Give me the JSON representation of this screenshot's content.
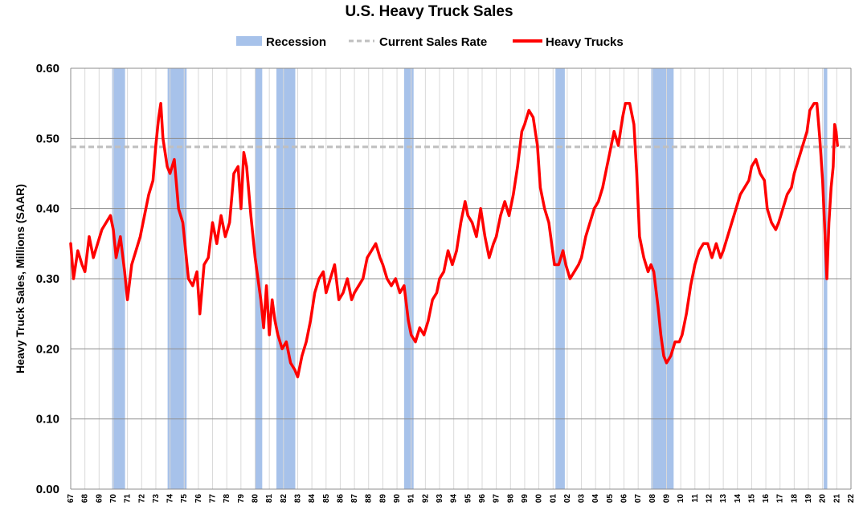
{
  "chart_data": {
    "type": "line",
    "title": "U.S. Heavy Truck Sales",
    "ylabel": "Heavy Truck Sales, Millions (SAAR)",
    "xlabel": "",
    "ylim": [
      0,
      0.6
    ],
    "xlim": [
      1967,
      2022
    ],
    "yticks": [
      "0.00",
      "0.10",
      "0.20",
      "0.30",
      "0.40",
      "0.50",
      "0.60"
    ],
    "xtick_labels": [
      "67",
      "68",
      "69",
      "70",
      "71",
      "72",
      "73",
      "74",
      "75",
      "76",
      "77",
      "78",
      "79",
      "80",
      "81",
      "82",
      "83",
      "84",
      "85",
      "86",
      "87",
      "88",
      "89",
      "90",
      "91",
      "92",
      "93",
      "94",
      "95",
      "96",
      "97",
      "98",
      "99",
      "00",
      "01",
      "02",
      "03",
      "04",
      "05",
      "06",
      "07",
      "08",
      "09",
      "10",
      "11",
      "12",
      "13",
      "14",
      "15",
      "16",
      "17",
      "18",
      "19",
      "20",
      "21",
      "22"
    ],
    "grid": true,
    "legend_placement": "top-center",
    "legend": [
      {
        "label": "Recession",
        "kind": "box",
        "color": "#a7c2ea"
      },
      {
        "label": "Current Sales Rate",
        "kind": "dash",
        "color": "#bfbfbf"
      },
      {
        "label": "Heavy Trucks",
        "kind": "line",
        "color": "#ff0000"
      }
    ],
    "current_sales_rate": 0.488,
    "recessions": [
      [
        1969.92,
        1970.83
      ],
      [
        1973.83,
        1975.17
      ],
      [
        1980.0,
        1980.5
      ],
      [
        1981.5,
        1982.83
      ],
      [
        1990.5,
        1991.17
      ],
      [
        2001.17,
        2001.83
      ],
      [
        2007.92,
        2009.5
      ],
      [
        2020.08,
        2020.33
      ]
    ],
    "series": [
      {
        "name": "Heavy Trucks",
        "color": "#ff0000",
        "points": [
          [
            1967.0,
            0.35
          ],
          [
            1967.2,
            0.3
          ],
          [
            1967.5,
            0.34
          ],
          [
            1967.8,
            0.32
          ],
          [
            1968.0,
            0.31
          ],
          [
            1968.3,
            0.36
          ],
          [
            1968.6,
            0.33
          ],
          [
            1968.9,
            0.35
          ],
          [
            1969.2,
            0.37
          ],
          [
            1969.5,
            0.38
          ],
          [
            1969.8,
            0.39
          ],
          [
            1970.0,
            0.37
          ],
          [
            1970.2,
            0.33
          ],
          [
            1970.5,
            0.36
          ],
          [
            1970.8,
            0.31
          ],
          [
            1971.0,
            0.27
          ],
          [
            1971.3,
            0.32
          ],
          [
            1971.6,
            0.34
          ],
          [
            1971.9,
            0.36
          ],
          [
            1972.2,
            0.39
          ],
          [
            1972.5,
            0.42
          ],
          [
            1972.8,
            0.44
          ],
          [
            1973.0,
            0.49
          ],
          [
            1973.2,
            0.53
          ],
          [
            1973.35,
            0.55
          ],
          [
            1973.5,
            0.5
          ],
          [
            1973.8,
            0.46
          ],
          [
            1974.0,
            0.45
          ],
          [
            1974.3,
            0.47
          ],
          [
            1974.6,
            0.4
          ],
          [
            1974.9,
            0.38
          ],
          [
            1975.1,
            0.34
          ],
          [
            1975.3,
            0.3
          ],
          [
            1975.6,
            0.29
          ],
          [
            1975.9,
            0.31
          ],
          [
            1976.1,
            0.25
          ],
          [
            1976.4,
            0.32
          ],
          [
            1976.7,
            0.33
          ],
          [
            1977.0,
            0.38
          ],
          [
            1977.3,
            0.35
          ],
          [
            1977.6,
            0.39
          ],
          [
            1977.9,
            0.36
          ],
          [
            1978.2,
            0.38
          ],
          [
            1978.5,
            0.45
          ],
          [
            1978.8,
            0.46
          ],
          [
            1979.0,
            0.4
          ],
          [
            1979.2,
            0.48
          ],
          [
            1979.4,
            0.46
          ],
          [
            1979.7,
            0.39
          ],
          [
            1980.0,
            0.33
          ],
          [
            1980.2,
            0.3
          ],
          [
            1980.4,
            0.27
          ],
          [
            1980.6,
            0.23
          ],
          [
            1980.8,
            0.29
          ],
          [
            1981.0,
            0.22
          ],
          [
            1981.2,
            0.27
          ],
          [
            1981.4,
            0.24
          ],
          [
            1981.6,
            0.22
          ],
          [
            1981.9,
            0.2
          ],
          [
            1982.2,
            0.21
          ],
          [
            1982.5,
            0.18
          ],
          [
            1982.8,
            0.17
          ],
          [
            1983.0,
            0.16
          ],
          [
            1983.3,
            0.19
          ],
          [
            1983.6,
            0.21
          ],
          [
            1983.9,
            0.24
          ],
          [
            1984.2,
            0.28
          ],
          [
            1984.5,
            0.3
          ],
          [
            1984.8,
            0.31
          ],
          [
            1985.0,
            0.28
          ],
          [
            1985.3,
            0.3
          ],
          [
            1985.6,
            0.32
          ],
          [
            1985.9,
            0.27
          ],
          [
            1986.2,
            0.28
          ],
          [
            1986.5,
            0.3
          ],
          [
            1986.8,
            0.27
          ],
          [
            1987.0,
            0.28
          ],
          [
            1987.3,
            0.29
          ],
          [
            1987.6,
            0.3
          ],
          [
            1987.9,
            0.33
          ],
          [
            1988.2,
            0.34
          ],
          [
            1988.5,
            0.35
          ],
          [
            1988.8,
            0.33
          ],
          [
            1989.0,
            0.32
          ],
          [
            1989.3,
            0.3
          ],
          [
            1989.6,
            0.29
          ],
          [
            1989.9,
            0.3
          ],
          [
            1990.2,
            0.28
          ],
          [
            1990.5,
            0.29
          ],
          [
            1990.8,
            0.24
          ],
          [
            1991.0,
            0.22
          ],
          [
            1991.3,
            0.21
          ],
          [
            1991.6,
            0.23
          ],
          [
            1991.9,
            0.22
          ],
          [
            1992.2,
            0.24
          ],
          [
            1992.5,
            0.27
          ],
          [
            1992.8,
            0.28
          ],
          [
            1993.0,
            0.3
          ],
          [
            1993.3,
            0.31
          ],
          [
            1993.6,
            0.34
          ],
          [
            1993.9,
            0.32
          ],
          [
            1994.2,
            0.34
          ],
          [
            1994.5,
            0.38
          ],
          [
            1994.8,
            0.41
          ],
          [
            1995.0,
            0.39
          ],
          [
            1995.3,
            0.38
          ],
          [
            1995.6,
            0.36
          ],
          [
            1995.9,
            0.4
          ],
          [
            1996.2,
            0.36
          ],
          [
            1996.5,
            0.33
          ],
          [
            1996.8,
            0.35
          ],
          [
            1997.0,
            0.36
          ],
          [
            1997.3,
            0.39
          ],
          [
            1997.6,
            0.41
          ],
          [
            1997.9,
            0.39
          ],
          [
            1998.2,
            0.42
          ],
          [
            1998.5,
            0.46
          ],
          [
            1998.8,
            0.51
          ],
          [
            1999.0,
            0.52
          ],
          [
            1999.3,
            0.54
          ],
          [
            1999.6,
            0.53
          ],
          [
            1999.9,
            0.49
          ],
          [
            2000.1,
            0.43
          ],
          [
            2000.4,
            0.4
          ],
          [
            2000.7,
            0.38
          ],
          [
            2000.9,
            0.35
          ],
          [
            2001.1,
            0.32
          ],
          [
            2001.4,
            0.32
          ],
          [
            2001.7,
            0.34
          ],
          [
            2001.9,
            0.32
          ],
          [
            2002.2,
            0.3
          ],
          [
            2002.5,
            0.31
          ],
          [
            2002.8,
            0.32
          ],
          [
            2003.0,
            0.33
          ],
          [
            2003.3,
            0.36
          ],
          [
            2003.6,
            0.38
          ],
          [
            2003.9,
            0.4
          ],
          [
            2004.2,
            0.41
          ],
          [
            2004.5,
            0.43
          ],
          [
            2004.8,
            0.46
          ],
          [
            2005.0,
            0.48
          ],
          [
            2005.3,
            0.51
          ],
          [
            2005.6,
            0.49
          ],
          [
            2005.9,
            0.53
          ],
          [
            2006.1,
            0.55
          ],
          [
            2006.4,
            0.55
          ],
          [
            2006.7,
            0.52
          ],
          [
            2006.9,
            0.45
          ],
          [
            2007.1,
            0.36
          ],
          [
            2007.4,
            0.33
          ],
          [
            2007.7,
            0.31
          ],
          [
            2007.9,
            0.32
          ],
          [
            2008.1,
            0.31
          ],
          [
            2008.4,
            0.26
          ],
          [
            2008.6,
            0.22
          ],
          [
            2008.8,
            0.19
          ],
          [
            2009.0,
            0.18
          ],
          [
            2009.3,
            0.19
          ],
          [
            2009.6,
            0.21
          ],
          [
            2009.9,
            0.21
          ],
          [
            2010.1,
            0.22
          ],
          [
            2010.4,
            0.25
          ],
          [
            2010.7,
            0.29
          ],
          [
            2011.0,
            0.32
          ],
          [
            2011.3,
            0.34
          ],
          [
            2011.6,
            0.35
          ],
          [
            2011.9,
            0.35
          ],
          [
            2012.2,
            0.33
          ],
          [
            2012.5,
            0.35
          ],
          [
            2012.8,
            0.33
          ],
          [
            2013.0,
            0.34
          ],
          [
            2013.3,
            0.36
          ],
          [
            2013.6,
            0.38
          ],
          [
            2013.9,
            0.4
          ],
          [
            2014.2,
            0.42
          ],
          [
            2014.5,
            0.43
          ],
          [
            2014.8,
            0.44
          ],
          [
            2015.0,
            0.46
          ],
          [
            2015.3,
            0.47
          ],
          [
            2015.6,
            0.45
          ],
          [
            2015.9,
            0.44
          ],
          [
            2016.1,
            0.4
          ],
          [
            2016.4,
            0.38
          ],
          [
            2016.7,
            0.37
          ],
          [
            2016.9,
            0.38
          ],
          [
            2017.2,
            0.4
          ],
          [
            2017.5,
            0.42
          ],
          [
            2017.8,
            0.43
          ],
          [
            2018.0,
            0.45
          ],
          [
            2018.3,
            0.47
          ],
          [
            2018.6,
            0.49
          ],
          [
            2018.9,
            0.51
          ],
          [
            2019.1,
            0.54
          ],
          [
            2019.4,
            0.55
          ],
          [
            2019.6,
            0.55
          ],
          [
            2019.8,
            0.5
          ],
          [
            2020.0,
            0.44
          ],
          [
            2020.2,
            0.35
          ],
          [
            2020.3,
            0.3
          ],
          [
            2020.45,
            0.38
          ],
          [
            2020.6,
            0.43
          ],
          [
            2020.75,
            0.46
          ],
          [
            2020.85,
            0.52
          ],
          [
            2020.95,
            0.51
          ],
          [
            2021.05,
            0.49
          ]
        ]
      }
    ]
  }
}
